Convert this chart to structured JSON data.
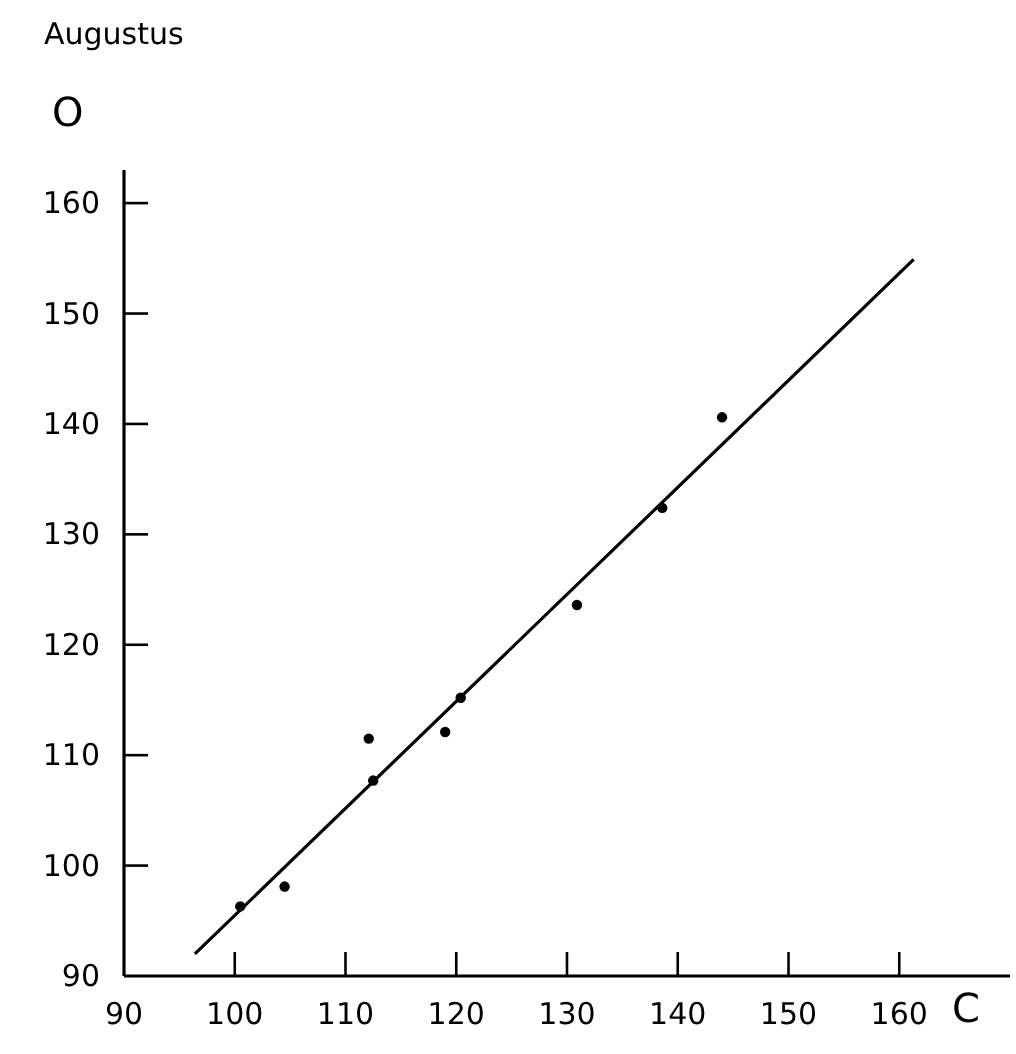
{
  "chart_data": {
    "type": "scatter",
    "title": "Augustus",
    "xlabel": "C",
    "ylabel": "O",
    "xlim": [
      90,
      170
    ],
    "ylim": [
      90,
      163
    ],
    "xticks": [
      90,
      100,
      110,
      120,
      130,
      140,
      150,
      160
    ],
    "yticks": [
      90,
      100,
      110,
      120,
      130,
      140,
      150,
      160
    ],
    "grid": false,
    "series": [
      {
        "marker": "circle",
        "color": "#000000",
        "x": [
          100.5,
          104.5,
          112.1,
          112.5,
          119,
          120.4,
          130.9,
          138.6,
          144
        ],
        "values": [
          96.3,
          98.1,
          111.5,
          107.7,
          112.1,
          115.2,
          123.6,
          132.4,
          140.6
        ]
      },
      {
        "type": "line",
        "color": "#000000",
        "line_style": "solid",
        "x": [
          96.4,
          161.3
        ],
        "values": [
          92,
          154.9
        ]
      }
    ]
  }
}
